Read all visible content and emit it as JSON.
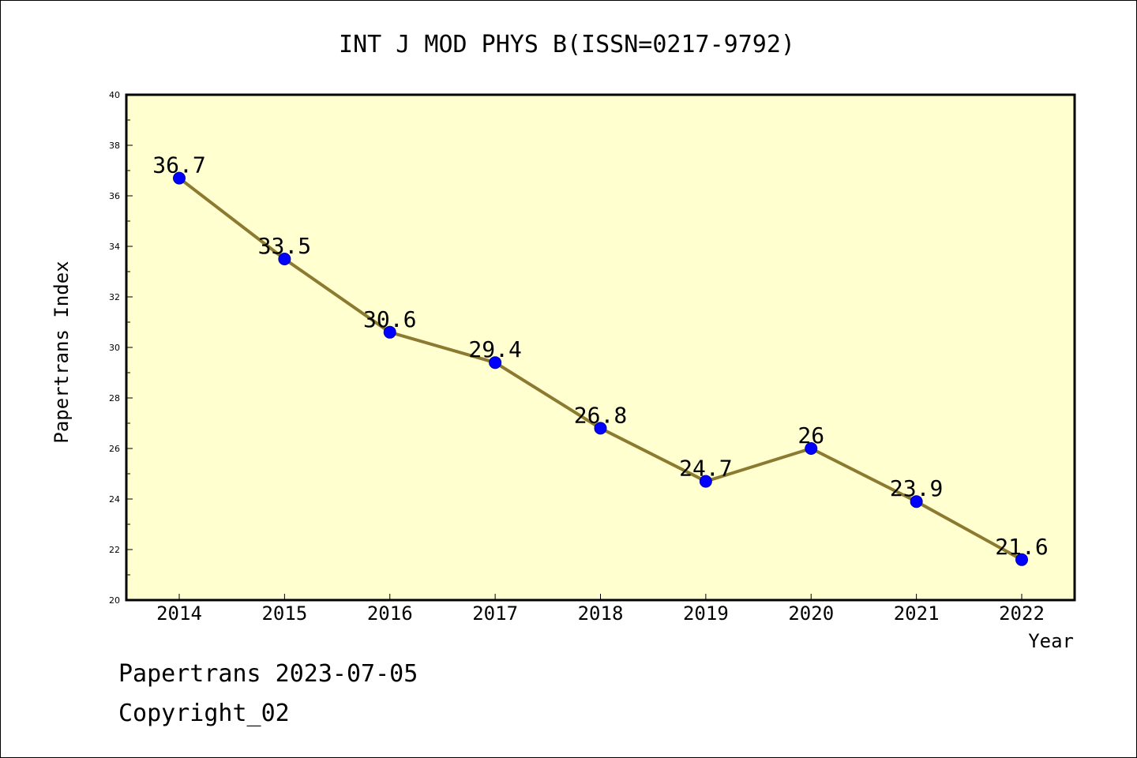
{
  "chart_data": {
    "type": "line",
    "title": "INT J MOD PHYS B(ISSN=0217-9792)",
    "xlabel": "Year",
    "ylabel": "Papertrans Index",
    "categories": [
      "2014",
      "2015",
      "2016",
      "2017",
      "2018",
      "2019",
      "2020",
      "2021",
      "2022"
    ],
    "series": [
      {
        "values": [
          36.7,
          33.5,
          30.6,
          29.4,
          26.8,
          24.7,
          26,
          23.9,
          21.6
        ],
        "labels": [
          "36.7",
          "33.5",
          "30.6",
          "29.4",
          "26.8",
          "24.7",
          "26",
          "23.9",
          "21.6"
        ]
      }
    ],
    "ylim": [
      20,
      40
    ],
    "yticks": [
      "20",
      "22",
      "24",
      "26",
      "28",
      "30",
      "32",
      "34",
      "36",
      "38",
      "40"
    ],
    "grid": false,
    "colors": {
      "plot_background": "#FFFFD0",
      "line": "#8B7A30",
      "marker": "#0000FF"
    }
  },
  "footer": {
    "line1": "Papertrans 2023-07-05",
    "line2": "Copyright_02"
  }
}
